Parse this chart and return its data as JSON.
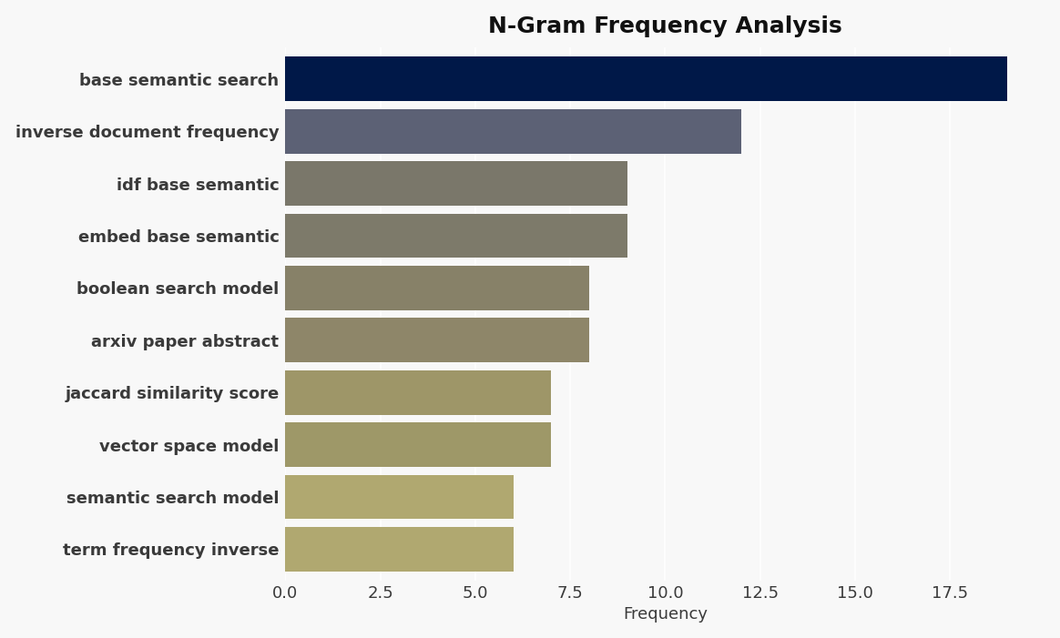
{
  "title": "N-Gram Frequency Analysis",
  "categories": [
    "term frequency inverse",
    "semantic search model",
    "vector space model",
    "jaccard similarity score",
    "arxiv paper abstract",
    "boolean search model",
    "embed base semantic",
    "idf base semantic",
    "inverse document frequency",
    "base semantic search"
  ],
  "values": [
    6.0,
    6.0,
    7.0,
    7.0,
    8.0,
    8.0,
    9.0,
    9.0,
    12.0,
    19.0
  ],
  "bar_colors": [
    "#B0A870",
    "#B0A870",
    "#9E9868",
    "#9E9668",
    "#8E8669",
    "#878168",
    "#7D7A6A",
    "#7A776A",
    "#5C6175",
    "#001848"
  ],
  "xlabel": "Frequency",
  "ylabel": "",
  "title_fontsize": 18,
  "xlabel_fontsize": 13,
  "tick_label_fontsize": 13,
  "background_color": "#F8F8F8",
  "plot_background_color": "#F8F8F8",
  "xlim": [
    0,
    20
  ],
  "xticks": [
    0.0,
    2.5,
    5.0,
    7.5,
    10.0,
    12.5,
    15.0,
    17.5
  ],
  "xtick_labels": [
    "0.0",
    "2.5",
    "5.0",
    "7.5",
    "10.0",
    "12.5",
    "15.0",
    "17.5"
  ],
  "grid_color": "#FFFFFF",
  "tick_color": "#3A3A3A"
}
